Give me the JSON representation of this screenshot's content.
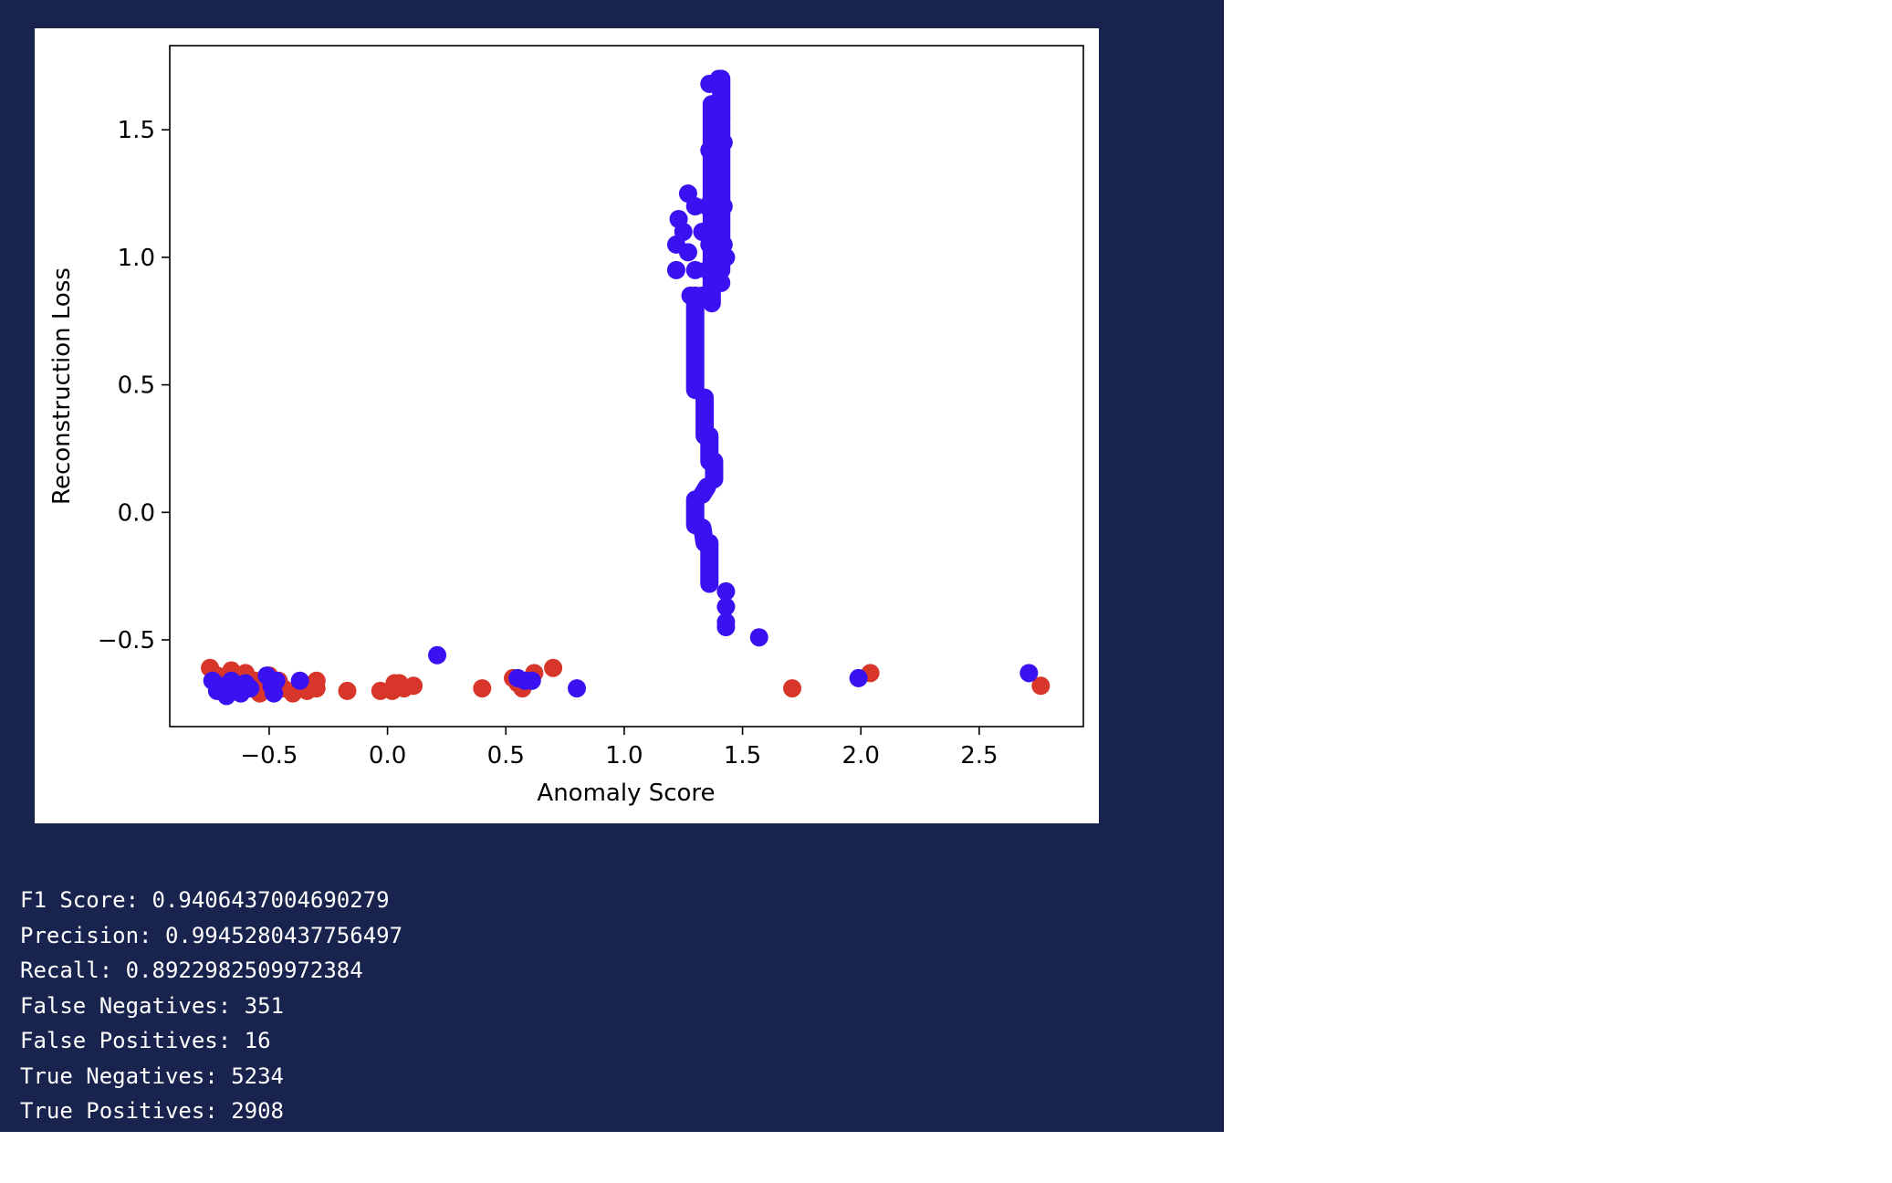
{
  "colors": {
    "panel_background": "#18234e",
    "figure_background": "#ffffff",
    "class_normal": "#d8362a",
    "class_anomaly": "#3a12f2",
    "text": "#ffffff",
    "axis": "#000000"
  },
  "chart_data": {
    "type": "scatter",
    "xlabel": "Anomaly Score",
    "ylabel": "Reconstruction Loss",
    "xlim": [
      -0.92,
      2.94
    ],
    "ylim": [
      -0.84,
      1.83
    ],
    "xticks": [
      -0.5,
      0.0,
      0.5,
      1.0,
      1.5,
      2.0,
      2.5
    ],
    "xtick_labels": [
      "−0.5",
      "0.0",
      "0.5",
      "1.0",
      "1.5",
      "2.0",
      "2.5"
    ],
    "yticks": [
      -0.5,
      0.0,
      0.5,
      1.0,
      1.5
    ],
    "ytick_labels": [
      "−0.5",
      "0.0",
      "0.5",
      "1.0",
      "1.5"
    ],
    "grid": false,
    "series": [
      {
        "color": "#d8362a",
        "points": [
          [
            -0.75,
            -0.61
          ],
          [
            -0.72,
            -0.64
          ],
          [
            -0.7,
            -0.7
          ],
          [
            -0.68,
            -0.66
          ],
          [
            -0.66,
            -0.62
          ],
          [
            -0.64,
            -0.68
          ],
          [
            -0.62,
            -0.71
          ],
          [
            -0.6,
            -0.63
          ],
          [
            -0.58,
            -0.69
          ],
          [
            -0.56,
            -0.66
          ],
          [
            -0.54,
            -0.71
          ],
          [
            -0.52,
            -0.67
          ],
          [
            -0.5,
            -0.64
          ],
          [
            -0.48,
            -0.7
          ],
          [
            -0.46,
            -0.66
          ],
          [
            -0.44,
            -0.69
          ],
          [
            -0.4,
            -0.71
          ],
          [
            -0.38,
            -0.69
          ],
          [
            -0.36,
            -0.67
          ],
          [
            -0.34,
            -0.7
          ],
          [
            -0.3,
            -0.69
          ],
          [
            -0.3,
            -0.66
          ],
          [
            -0.17,
            -0.7
          ],
          [
            -0.03,
            -0.7
          ],
          [
            0.02,
            -0.7
          ],
          [
            0.03,
            -0.67
          ],
          [
            0.05,
            -0.67
          ],
          [
            0.07,
            -0.69
          ],
          [
            0.11,
            -0.68
          ],
          [
            0.4,
            -0.69
          ],
          [
            0.53,
            -0.65
          ],
          [
            0.55,
            -0.67
          ],
          [
            0.57,
            -0.69
          ],
          [
            0.62,
            -0.63
          ],
          [
            0.7,
            -0.61
          ],
          [
            1.71,
            -0.69
          ],
          [
            2.04,
            -0.63
          ],
          [
            2.76,
            -0.68
          ]
        ]
      },
      {
        "color": "#3a12f2",
        "points": [
          [
            -0.74,
            -0.66
          ],
          [
            -0.72,
            -0.7
          ],
          [
            -0.7,
            -0.68
          ],
          [
            -0.68,
            -0.72
          ],
          [
            -0.66,
            -0.66
          ],
          [
            -0.64,
            -0.69
          ],
          [
            -0.62,
            -0.71
          ],
          [
            -0.6,
            -0.67
          ],
          [
            -0.58,
            -0.69
          ],
          [
            -0.51,
            -0.64
          ],
          [
            -0.49,
            -0.68
          ],
          [
            -0.48,
            -0.71
          ],
          [
            -0.47,
            -0.66
          ],
          [
            -0.37,
            -0.66
          ],
          [
            0.21,
            -0.56
          ],
          [
            0.55,
            -0.65
          ],
          [
            0.58,
            -0.66
          ],
          [
            0.61,
            -0.66
          ],
          [
            0.8,
            -0.69
          ],
          [
            1.57,
            -0.49
          ],
          [
            1.99,
            -0.65
          ],
          [
            2.71,
            -0.63
          ],
          [
            1.43,
            -0.31
          ],
          [
            1.43,
            -0.37
          ],
          [
            1.43,
            -0.43
          ],
          [
            1.43,
            -0.45
          ],
          [
            1.23,
            1.15
          ],
          [
            1.22,
            1.05
          ],
          [
            1.22,
            0.95
          ],
          [
            1.25,
            1.1
          ],
          [
            1.27,
            1.25
          ],
          [
            1.27,
            1.02
          ],
          [
            1.28,
            0.85
          ],
          [
            1.3,
            1.2
          ],
          [
            1.3,
            0.95
          ],
          [
            1.33,
            1.1
          ],
          [
            1.33,
            0.85
          ],
          [
            1.35,
            1.2
          ],
          [
            1.35,
            0.95
          ],
          [
            1.36,
            1.05
          ],
          [
            1.37,
            0.9
          ],
          [
            1.38,
            1.15
          ],
          [
            1.4,
            1.0
          ],
          [
            1.4,
            1.25
          ],
          [
            1.41,
            0.9
          ],
          [
            1.42,
            1.2
          ],
          [
            1.42,
            1.05
          ],
          [
            1.43,
            1.0
          ],
          [
            1.36,
            1.68
          ],
          [
            1.38,
            1.58
          ],
          [
            1.4,
            1.7
          ],
          [
            1.41,
            1.55
          ],
          [
            1.42,
            1.45
          ],
          [
            1.36,
            1.42
          ],
          [
            1.38,
            1.35
          ],
          [
            1.4,
            1.3
          ],
          [
            1.37,
            1.6
          ],
          [
            1.39,
            1.48
          ]
        ],
        "segments": [
          [
            [
              1.3,
              0.85
            ],
            [
              1.3,
              0.48
            ]
          ],
          [
            [
              1.34,
              0.45
            ],
            [
              1.34,
              0.3
            ]
          ],
          [
            [
              1.36,
              0.3
            ],
            [
              1.36,
              0.2
            ]
          ],
          [
            [
              1.38,
              0.2
            ],
            [
              1.38,
              0.13
            ]
          ],
          [
            [
              1.35,
              0.1
            ],
            [
              1.33,
              0.07
            ]
          ],
          [
            [
              1.3,
              0.05
            ],
            [
              1.3,
              -0.05
            ]
          ],
          [
            [
              1.33,
              -0.06
            ],
            [
              1.34,
              -0.12
            ]
          ],
          [
            [
              1.36,
              -0.12
            ],
            [
              1.36,
              -0.28
            ]
          ],
          [
            [
              1.37,
              0.82
            ],
            [
              1.37,
              1.6
            ]
          ],
          [
            [
              1.41,
              0.95
            ],
            [
              1.41,
              1.7
            ]
          ]
        ]
      }
    ]
  },
  "metrics": [
    {
      "label": "F1 Score:",
      "value": "0.9406437004690279"
    },
    {
      "label": "Precision:",
      "value": "0.9945280437756497"
    },
    {
      "label": "Recall:",
      "value": "0.8922982509972384"
    },
    {
      "label": "False Negatives:",
      "value": "351"
    },
    {
      "label": "False Positives:",
      "value": "16"
    },
    {
      "label": "True Negatives:",
      "value": "5234"
    },
    {
      "label": "True Positives:",
      "value": "2908"
    }
  ]
}
